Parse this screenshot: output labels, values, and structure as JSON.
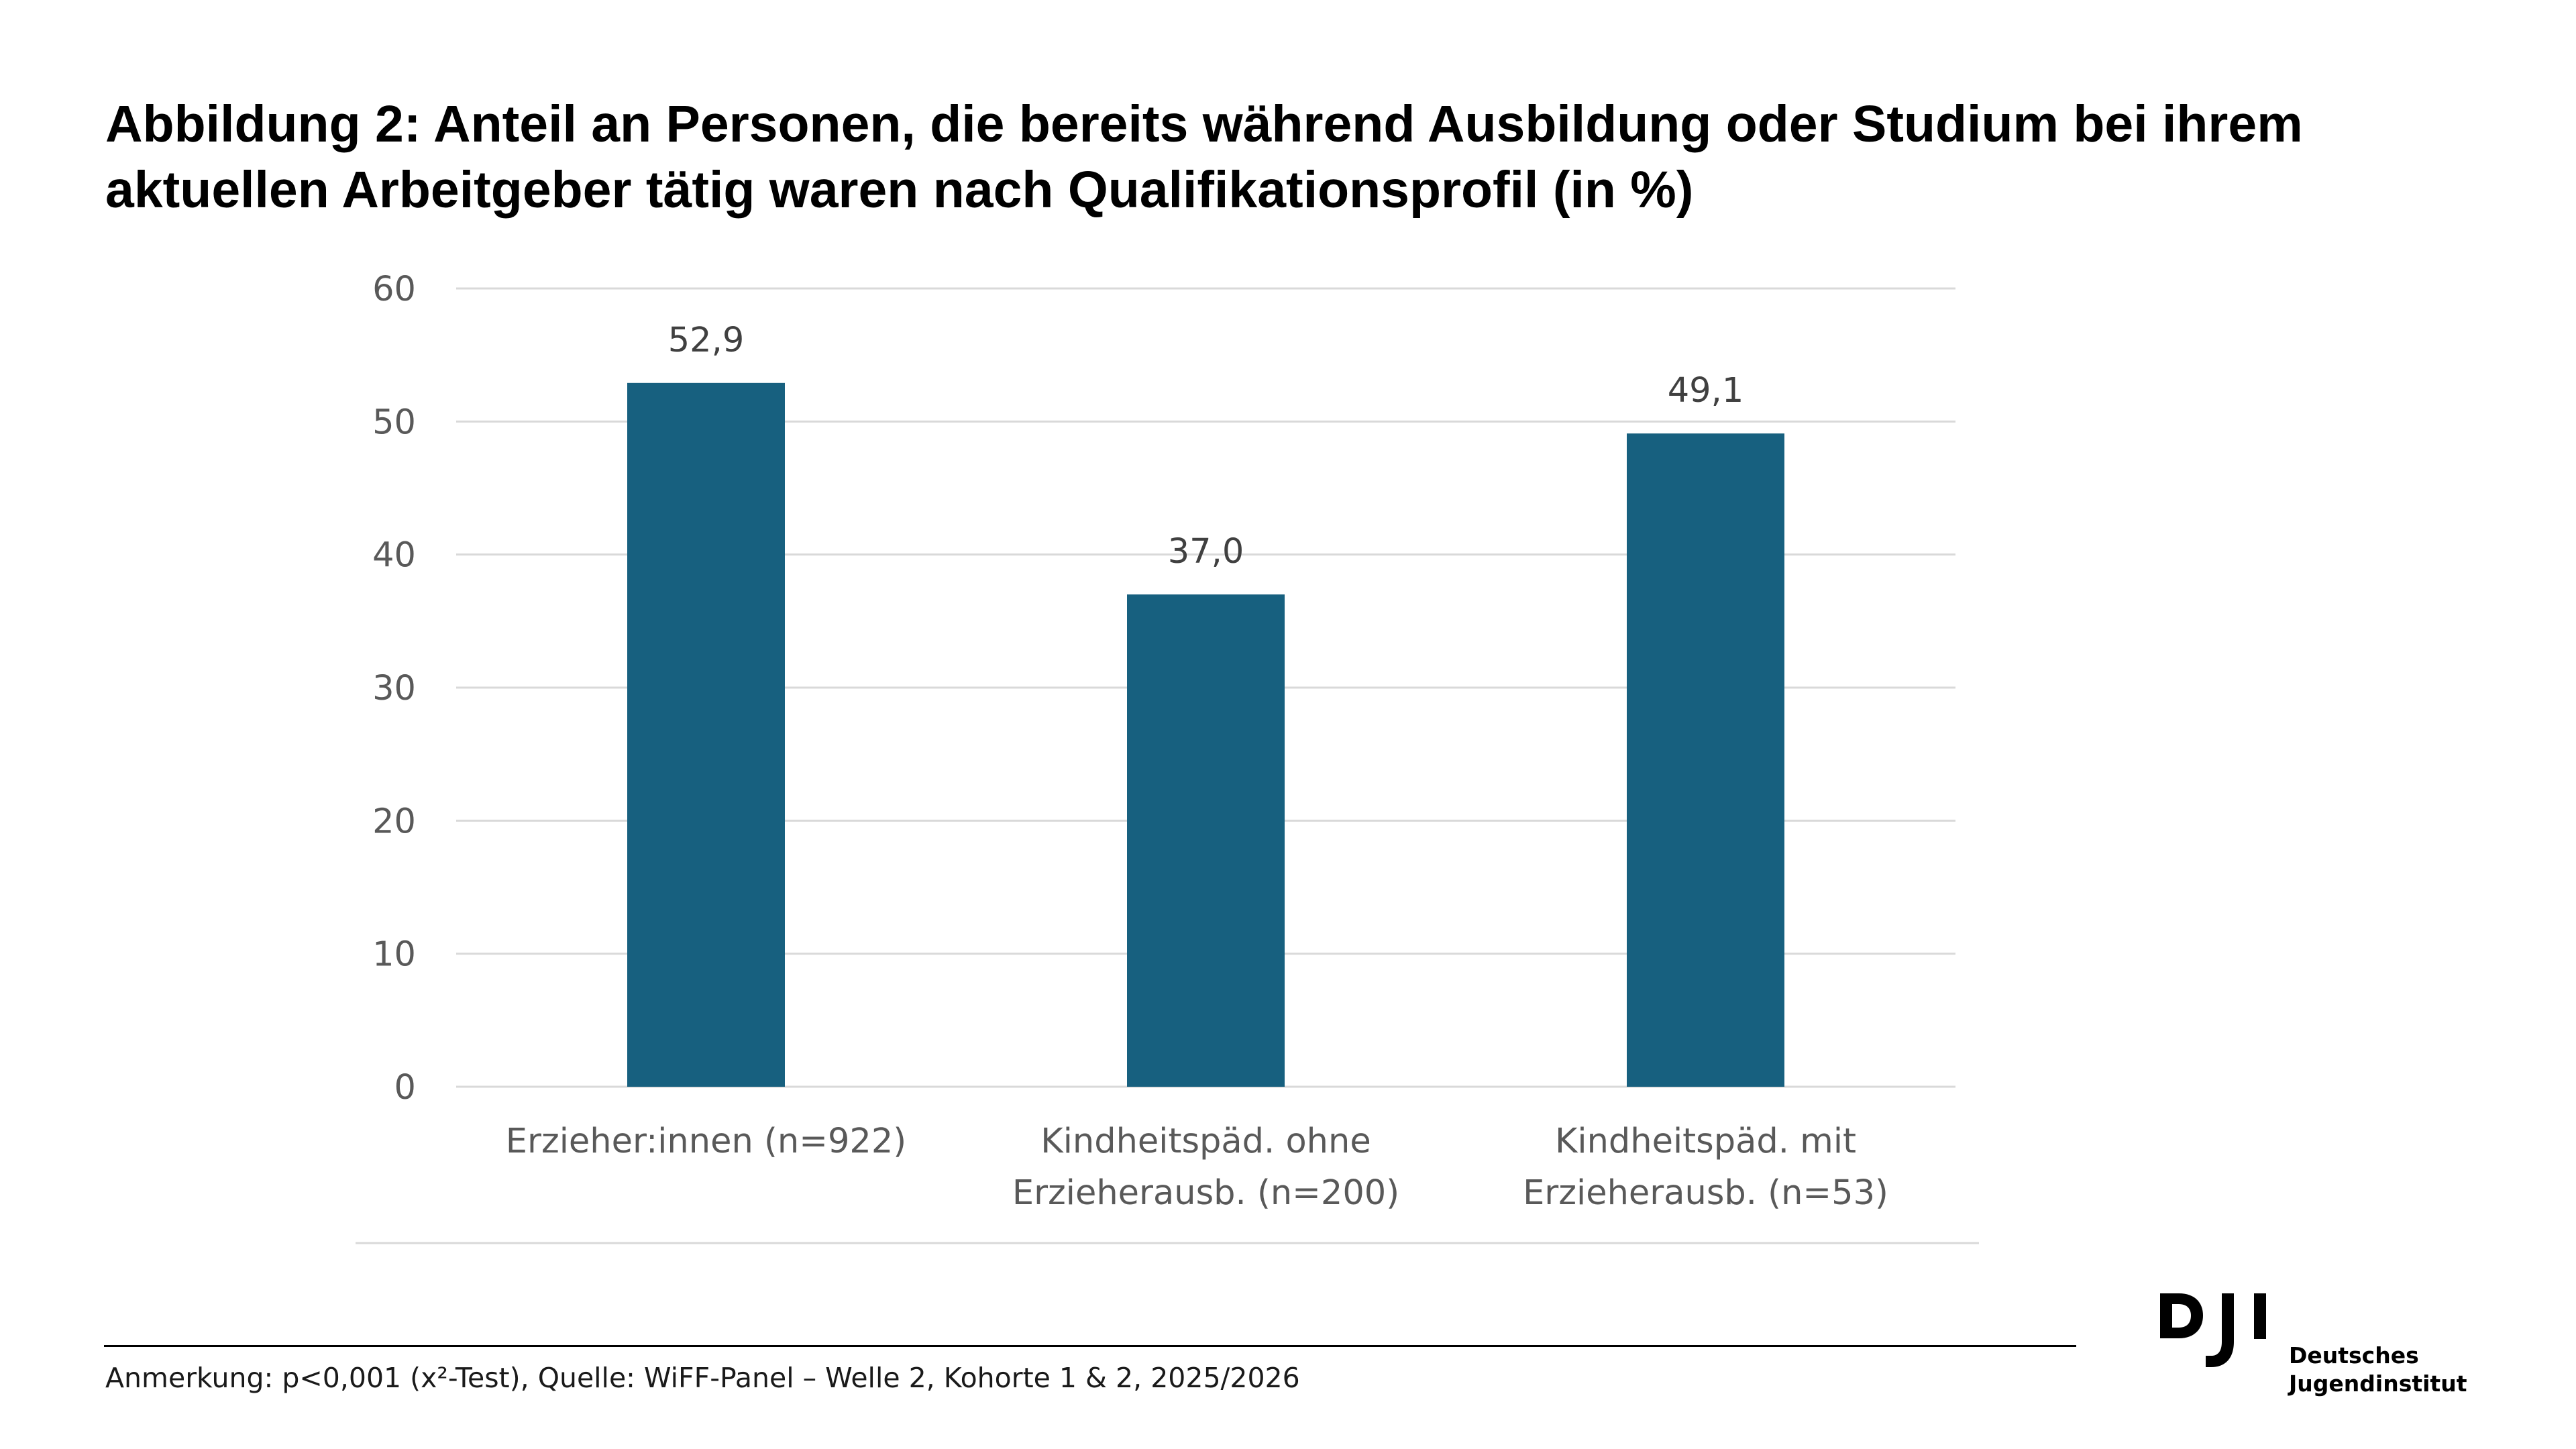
{
  "title_lines": [
    "Abbildung 2: Anteil an Personen, die bereits während Ausbildung oder Studium bei ihrem",
    "aktuellen Arbeitgeber tätig waren nach Qualifikationsprofil (in %)"
  ],
  "chart_data": {
    "type": "bar",
    "title": "Abbildung 2: Anteil an Personen, die bereits während Ausbildung oder Studium bei ihrem aktuellen Arbeitgeber tätig waren nach Qualifikationsprofil (in %)",
    "categories": [
      [
        "Erzieher:innen (n=922)"
      ],
      [
        "Kindheitspäd. ohne",
        "Erzieherausb. (n=200)"
      ],
      [
        "Kindheitspäd. mit",
        "Erzieherausb. (n=53)"
      ]
    ],
    "values": [
      52.9,
      37.0,
      49.1
    ],
    "value_labels": [
      "52,9",
      "37,0",
      "49,1"
    ],
    "ylim": [
      0,
      60
    ],
    "yticks": [
      0,
      10,
      20,
      30,
      40,
      50,
      60
    ],
    "xlabel": "",
    "ylabel": "",
    "grid": true,
    "legend": "none",
    "bar_color": "#17607f",
    "grid_color": "#d9d9d9"
  },
  "footnote": "Anmerkung: p<0,001 (x²-Test), Quelle: WiFF-Panel – Welle 2, Kohorte 1 & 2, 2025/2026",
  "logo": {
    "line1": "Deutsches",
    "line2": "Jugendinstitut"
  }
}
